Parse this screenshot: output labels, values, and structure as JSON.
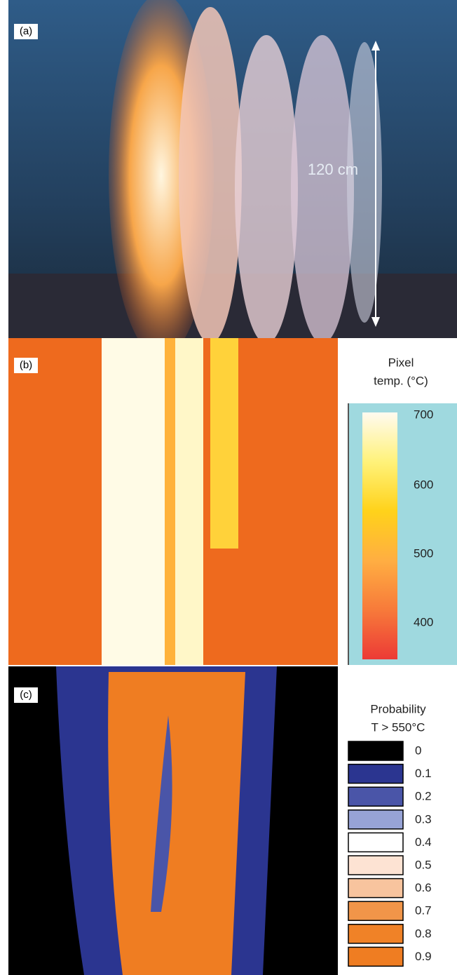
{
  "panels": [
    {
      "label": "(a)",
      "annotation": "120 cm"
    },
    {
      "label": "(b)",
      "colorbar": {
        "title_lines": [
          "Pixel",
          "temp. (°C)"
        ],
        "ticks": [
          "700",
          "600",
          "500",
          "400"
        ]
      }
    },
    {
      "label": "(c)",
      "legend": {
        "title_lines": [
          "Probability",
          "T > 550°C"
        ],
        "entries": [
          {
            "label": "0",
            "color": "#000000"
          },
          {
            "label": "0.1",
            "color": "#2b3590"
          },
          {
            "label": "0.2",
            "color": "#4a55a8"
          },
          {
            "label": "0.3",
            "color": "#97a3d6"
          },
          {
            "label": "0.4",
            "color": "#ffffff"
          },
          {
            "label": "0.5",
            "color": "#fde3d3"
          },
          {
            "label": "0.6",
            "color": "#f8c49e"
          },
          {
            "label": "0.7",
            "color": "#f19549"
          },
          {
            "label": "0.8",
            "color": "#f08227"
          },
          {
            "label": "0.9",
            "color": "#ef7d22"
          }
        ]
      }
    }
  ]
}
